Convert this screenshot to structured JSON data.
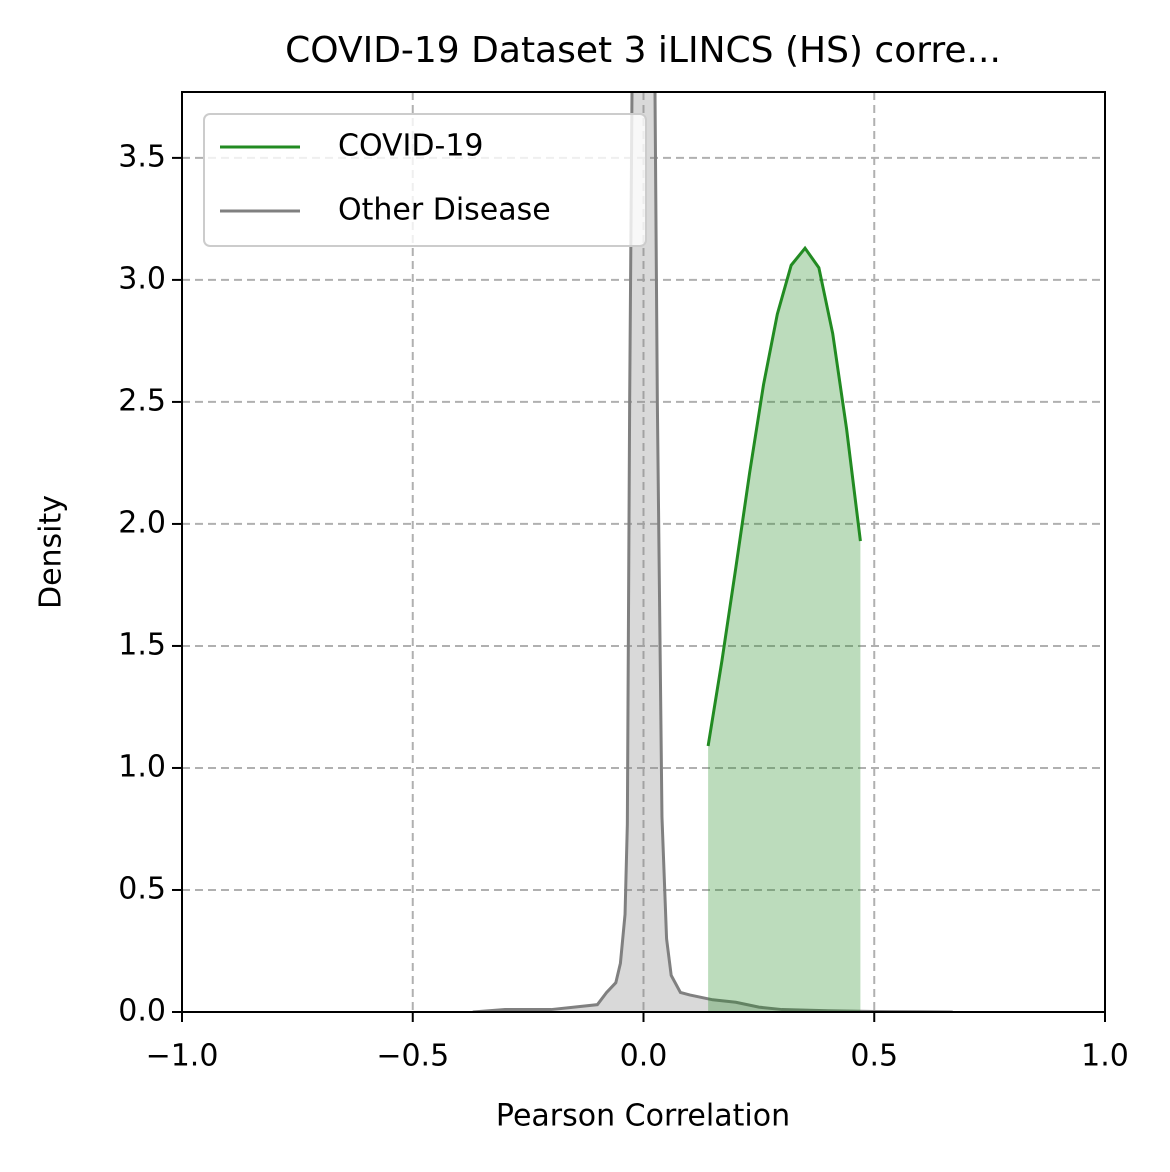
{
  "chart_data": {
    "type": "density",
    "title": "COVID-19 Dataset 3 iLINCS (HS) corre...",
    "x_label": "Pearson Correlation",
    "y_label": "Density",
    "xlim": [
      -1,
      1
    ],
    "ylim": [
      0,
      3.77
    ],
    "xticks": [
      {
        "value": -1,
        "label": "−1.0"
      },
      {
        "value": -0.5,
        "label": "−0.5"
      },
      {
        "value": 0,
        "label": "0.0"
      },
      {
        "value": 0.5,
        "label": "0.5"
      },
      {
        "value": 1,
        "label": "1.0"
      }
    ],
    "yticks": [
      {
        "value": 0,
        "label": "0.0"
      },
      {
        "value": 0.5,
        "label": "0.5"
      },
      {
        "value": 1,
        "label": "1.0"
      },
      {
        "value": 1.5,
        "label": "1.5"
      },
      {
        "value": 2,
        "label": "2.0"
      },
      {
        "value": 2.5,
        "label": "2.5"
      },
      {
        "value": 3,
        "label": "3.0"
      },
      {
        "value": 3.5,
        "label": "3.5"
      }
    ],
    "grid": true,
    "legend": "upper left",
    "series": [
      {
        "name": "COVID-19",
        "color": "#228b22",
        "x": [
          0.14,
          0.17,
          0.2,
          0.23,
          0.26,
          0.29,
          0.32,
          0.35,
          0.38,
          0.41,
          0.44,
          0.47
        ],
        "values": [
          1.09,
          1.44,
          1.82,
          2.21,
          2.57,
          2.86,
          3.06,
          3.13,
          3.05,
          2.78,
          2.39,
          1.93
        ]
      },
      {
        "name": "Other Disease",
        "color": "#808080",
        "x": [
          -0.37,
          -0.3,
          -0.2,
          -0.15,
          -0.1,
          -0.08,
          -0.06,
          -0.05,
          -0.04,
          -0.035,
          -0.03,
          -0.02,
          0,
          0.02,
          0.03,
          0.04,
          0.05,
          0.06,
          0.08,
          0.1,
          0.15,
          0.2,
          0.25,
          0.3,
          0.4,
          0.5,
          0.6,
          0.67
        ],
        "values": [
          0,
          0.01,
          0.01,
          0.02,
          0.03,
          0.08,
          0.12,
          0.2,
          0.4,
          0.77,
          2.5,
          5,
          7,
          5,
          2.5,
          0.8,
          0.3,
          0.15,
          0.08,
          0.07,
          0.05,
          0.04,
          0.02,
          0.01,
          0.005,
          0.002,
          0.001,
          0
        ]
      }
    ]
  }
}
